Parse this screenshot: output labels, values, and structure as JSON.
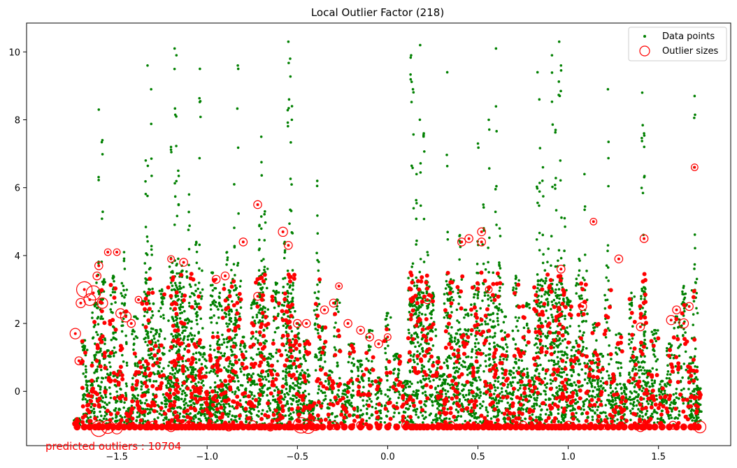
{
  "chart_data": {
    "type": "scatter",
    "title": "Local Outlier Factor (218)",
    "xlabel": "",
    "ylabel": "",
    "xlim": [
      -2.0,
      1.9
    ],
    "ylim": [
      -1.6,
      10.85
    ],
    "x_ticks": [
      -1.5,
      -1.0,
      -0.5,
      0.0,
      0.5,
      1.0,
      1.5
    ],
    "x_tick_labels": [
      "−1.5",
      "−1.0",
      "−0.5",
      "0.0",
      "0.5",
      "1.0",
      "1.5"
    ],
    "y_ticks": [
      0,
      2,
      4,
      6,
      8,
      10
    ],
    "y_tick_labels": [
      "0",
      "2",
      "4",
      "6",
      "8",
      "10"
    ],
    "grid": false,
    "legend": {
      "placement": "top-right",
      "entries": [
        {
          "label": "Data points",
          "color": "#008000",
          "marker": "dot"
        },
        {
          "label": "Outlier sizes",
          "color": "#ff0000",
          "marker": "open-circle"
        }
      ]
    },
    "annotation": {
      "text": "predicted outliers : 10704",
      "color": "#ff0000"
    },
    "series": [
      {
        "name": "Data points",
        "color": "#008000",
        "note": "dense vertical clusters of points; representative sample (x, y)",
        "points": [
          [
            -1.72,
            -0.8
          ],
          [
            -1.68,
            1.5
          ],
          [
            -1.65,
            0.3
          ],
          [
            -1.62,
            2.6
          ],
          [
            -1.6,
            8.3
          ],
          [
            -1.58,
            7.4
          ],
          [
            -1.55,
            1.2
          ],
          [
            -1.52,
            3.4
          ],
          [
            -1.49,
            0.6
          ],
          [
            -1.46,
            4.1
          ],
          [
            -1.43,
            -0.5
          ],
          [
            -1.4,
            2.2
          ],
          [
            -1.37,
            0.9
          ],
          [
            -1.34,
            6.8
          ],
          [
            -1.33,
            9.6
          ],
          [
            -1.31,
            8.9
          ],
          [
            -1.28,
            1.8
          ],
          [
            -1.25,
            3.0
          ],
          [
            -1.22,
            0.4
          ],
          [
            -1.2,
            7.2
          ],
          [
            -1.18,
            10.1
          ],
          [
            -1.17,
            9.9
          ],
          [
            -1.16,
            6.5
          ],
          [
            -1.14,
            3.7
          ],
          [
            -1.12,
            2.1
          ],
          [
            -1.1,
            5.8
          ],
          [
            -1.08,
            0.7
          ],
          [
            -1.06,
            4.4
          ],
          [
            -1.04,
            9.5
          ],
          [
            -1.02,
            1.3
          ],
          [
            -0.99,
            -0.2
          ],
          [
            -0.97,
            3.5
          ],
          [
            -0.95,
            1.0
          ],
          [
            -0.93,
            2.9
          ],
          [
            -0.91,
            0.2
          ],
          [
            -0.89,
            4.1
          ],
          [
            -0.87,
            2.4
          ],
          [
            -0.85,
            6.1
          ],
          [
            -0.83,
            9.6
          ],
          [
            -0.8,
            1.6
          ],
          [
            -0.77,
            0.5
          ],
          [
            -0.74,
            2.7
          ],
          [
            -0.71,
            4.9
          ],
          [
            -0.7,
            7.5
          ],
          [
            -0.68,
            5.3
          ],
          [
            -0.65,
            1.1
          ],
          [
            -0.62,
            3.2
          ],
          [
            -0.6,
            0.0
          ],
          [
            -0.57,
            4.4
          ],
          [
            -0.55,
            10.3
          ],
          [
            -0.54,
            9.8
          ],
          [
            -0.53,
            8.4
          ],
          [
            -0.5,
            2.0
          ],
          [
            -0.48,
            0.8
          ],
          [
            -0.45,
            1.5
          ],
          [
            -0.42,
            -0.3
          ],
          [
            -0.39,
            6.2
          ],
          [
            -0.36,
            1.9
          ],
          [
            -0.32,
            0.6
          ],
          [
            -0.28,
            2.7
          ],
          [
            -0.24,
            0.2
          ],
          [
            -0.2,
            1.4
          ],
          [
            -0.15,
            0.9
          ],
          [
            -0.1,
            1.8
          ],
          [
            -0.05,
            0.4
          ],
          [
            0.0,
            2.3
          ],
          [
            0.05,
            1.1
          ],
          [
            0.1,
            0.3
          ],
          [
            0.13,
            9.9
          ],
          [
            0.14,
            8.9
          ],
          [
            0.16,
            6.4
          ],
          [
            0.18,
            10.2
          ],
          [
            0.2,
            7.6
          ],
          [
            0.22,
            4.1
          ],
          [
            0.25,
            2.9
          ],
          [
            0.28,
            1.0
          ],
          [
            0.31,
            0.5
          ],
          [
            0.33,
            9.4
          ],
          [
            0.35,
            3.3
          ],
          [
            0.38,
            1.7
          ],
          [
            0.4,
            4.6
          ],
          [
            0.43,
            2.4
          ],
          [
            0.46,
            0.8
          ],
          [
            0.48,
            3.1
          ],
          [
            0.5,
            7.3
          ],
          [
            0.53,
            5.5
          ],
          [
            0.56,
            8.0
          ],
          [
            0.58,
            1.9
          ],
          [
            0.6,
            10.1
          ],
          [
            0.62,
            4.8
          ],
          [
            0.65,
            2.2
          ],
          [
            0.68,
            0.6
          ],
          [
            0.71,
            3.4
          ],
          [
            0.74,
            1.2
          ],
          [
            0.77,
            2.6
          ],
          [
            0.8,
            0.4
          ],
          [
            0.83,
            9.4
          ],
          [
            0.84,
            8.6
          ],
          [
            0.86,
            6.6
          ],
          [
            0.89,
            4.2
          ],
          [
            0.91,
            9.9
          ],
          [
            0.93,
            7.7
          ],
          [
            0.95,
            10.3
          ],
          [
            0.96,
            9.6
          ],
          [
            0.98,
            5.1
          ],
          [
            1.0,
            2.7
          ],
          [
            1.03,
            1.3
          ],
          [
            1.06,
            3.9
          ],
          [
            1.09,
            6.4
          ],
          [
            1.12,
            0.9
          ],
          [
            1.15,
            2.0
          ],
          [
            1.18,
            1.1
          ],
          [
            1.22,
            8.9
          ],
          [
            1.25,
            0.5
          ],
          [
            1.28,
            1.7
          ],
          [
            1.31,
            0.2
          ],
          [
            1.35,
            2.9
          ],
          [
            1.38,
            1.0
          ],
          [
            1.41,
            8.8
          ],
          [
            1.42,
            7.6
          ],
          [
            1.45,
            0.6
          ],
          [
            1.48,
            1.8
          ],
          [
            1.52,
            0.3
          ],
          [
            1.56,
            1.4
          ],
          [
            1.6,
            2.2
          ],
          [
            1.64,
            3.1
          ],
          [
            1.68,
            1.0
          ],
          [
            1.7,
            8.7
          ],
          [
            1.72,
            0.1
          ]
        ]
      },
      {
        "name": "Outlier sizes",
        "color": "#ff0000",
        "note": "predicted outliers with circle radius proportional to outlier score; representative sample (x, y, score)",
        "points": [
          [
            -1.73,
            1.7,
            0.5
          ],
          [
            -1.71,
            0.9,
            0.3
          ],
          [
            -1.7,
            2.6,
            0.4
          ],
          [
            -1.68,
            3.0,
            0.9
          ],
          [
            -1.65,
            2.7,
            0.6
          ],
          [
            -1.63,
            2.9,
            0.8
          ],
          [
            -1.61,
            3.4,
            0.3
          ],
          [
            -1.6,
            3.7,
            0.3
          ],
          [
            -1.58,
            2.6,
            0.5
          ],
          [
            -1.55,
            4.1,
            0.2
          ],
          [
            -1.5,
            4.1,
            0.2
          ],
          [
            -1.48,
            2.3,
            0.4
          ],
          [
            -1.45,
            2.2,
            0.5
          ],
          [
            -1.42,
            2.0,
            0.3
          ],
          [
            -1.38,
            2.7,
            0.2
          ],
          [
            -1.6,
            -1.1,
            0.9
          ],
          [
            -1.55,
            -1.05,
            0.7
          ],
          [
            -1.5,
            -1.1,
            0.5
          ],
          [
            -1.3,
            -1.0,
            0.3
          ],
          [
            -1.2,
            -1.05,
            0.4
          ],
          [
            -1.1,
            -1.0,
            0.3
          ],
          [
            -0.98,
            -1.0,
            0.3
          ],
          [
            -0.88,
            -1.05,
            0.3
          ],
          [
            -0.75,
            -1.0,
            0.4
          ],
          [
            -0.65,
            -1.05,
            0.3
          ],
          [
            -0.48,
            -1.0,
            0.9
          ],
          [
            -0.44,
            -1.05,
            0.7
          ],
          [
            -0.4,
            -1.0,
            0.5
          ],
          [
            -0.3,
            -1.0,
            0.3
          ],
          [
            -0.15,
            -1.0,
            0.3
          ],
          [
            0.1,
            -1.0,
            0.3
          ],
          [
            0.35,
            -1.0,
            0.3
          ],
          [
            0.55,
            -1.0,
            0.3
          ],
          [
            0.75,
            -1.0,
            0.3
          ],
          [
            1.0,
            -1.0,
            0.3
          ],
          [
            1.2,
            -1.0,
            0.3
          ],
          [
            1.4,
            -1.05,
            0.4
          ],
          [
            1.58,
            -1.0,
            0.3
          ],
          [
            1.73,
            -1.05,
            0.6
          ],
          [
            -1.2,
            3.9,
            0.2
          ],
          [
            -1.13,
            3.8,
            0.3
          ],
          [
            -0.95,
            3.3,
            0.3
          ],
          [
            -0.9,
            3.4,
            0.3
          ],
          [
            -0.8,
            4.4,
            0.3
          ],
          [
            -0.72,
            5.5,
            0.3
          ],
          [
            -0.72,
            2.8,
            0.3
          ],
          [
            -0.58,
            4.7,
            0.4
          ],
          [
            -0.55,
            4.3,
            0.3
          ],
          [
            -0.5,
            2.0,
            0.3
          ],
          [
            -0.45,
            2.0,
            0.3
          ],
          [
            -0.35,
            2.4,
            0.3
          ],
          [
            -0.3,
            2.6,
            0.3
          ],
          [
            -0.27,
            3.1,
            0.2
          ],
          [
            -0.22,
            2.0,
            0.3
          ],
          [
            -0.15,
            1.8,
            0.3
          ],
          [
            -0.1,
            1.6,
            0.3
          ],
          [
            -0.05,
            1.4,
            0.3
          ],
          [
            0.0,
            1.6,
            0.2
          ],
          [
            0.22,
            2.7,
            0.3
          ],
          [
            0.41,
            4.4,
            0.3
          ],
          [
            0.45,
            4.5,
            0.3
          ],
          [
            0.52,
            4.7,
            0.3
          ],
          [
            0.52,
            4.4,
            0.3
          ],
          [
            0.56,
            3.0,
            0.2
          ],
          [
            0.96,
            3.6,
            0.3
          ],
          [
            1.08,
            2.5,
            0.3
          ],
          [
            1.14,
            5.0,
            0.2
          ],
          [
            1.28,
            3.9,
            0.3
          ],
          [
            1.4,
            1.9,
            0.3
          ],
          [
            1.42,
            4.5,
            0.3
          ],
          [
            1.57,
            2.1,
            0.4
          ],
          [
            1.6,
            2.4,
            0.3
          ],
          [
            1.64,
            2.0,
            0.4
          ],
          [
            1.67,
            2.5,
            0.3
          ],
          [
            1.7,
            6.6,
            0.2
          ]
        ]
      }
    ]
  }
}
